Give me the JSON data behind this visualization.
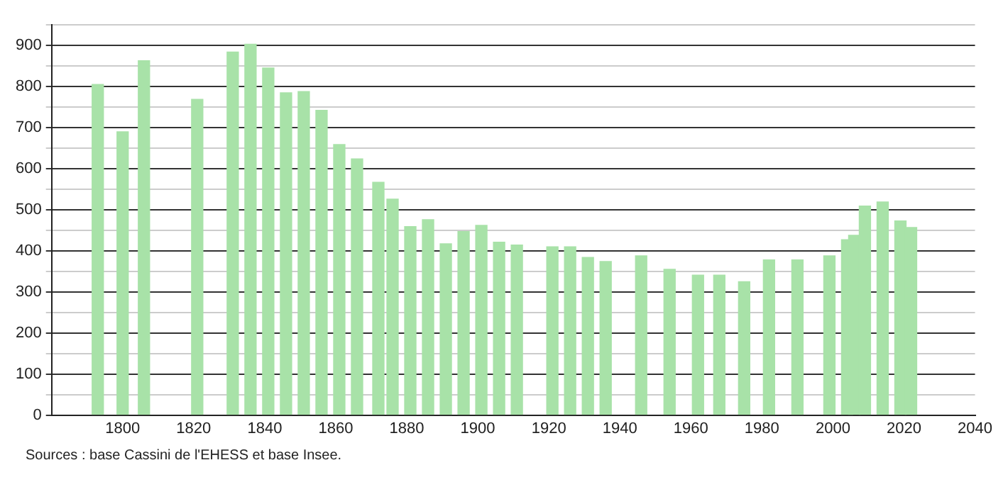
{
  "chart_data": {
    "type": "bar",
    "x": [
      1793,
      1800,
      1806,
      1821,
      1831,
      1836,
      1841,
      1846,
      1851,
      1856,
      1861,
      1866,
      1872,
      1876,
      1881,
      1886,
      1891,
      1896,
      1901,
      1906,
      1911,
      1921,
      1926,
      1931,
      1936,
      1946,
      1954,
      1962,
      1968,
      1975,
      1982,
      1990,
      1999,
      2004,
      2006,
      2009,
      2014,
      2019,
      2022
    ],
    "values": [
      805,
      690,
      863,
      769,
      884,
      903,
      845,
      785,
      788,
      742,
      659,
      624,
      567,
      526,
      459,
      476,
      417,
      447,
      462,
      421,
      414,
      410,
      410,
      384,
      374,
      388,
      355,
      341,
      341,
      325,
      378,
      378,
      388,
      427,
      438,
      509,
      519,
      473,
      457
    ],
    "color": "#a8e2a8",
    "xlim": [
      1780,
      2040
    ],
    "xticks": [
      1800,
      1820,
      1840,
      1860,
      1880,
      1900,
      1920,
      1940,
      1960,
      1980,
      2000,
      2020,
      2040
    ],
    "ylim": [
      0,
      950
    ],
    "yticks": [
      0,
      {
        "value": 50,
        "label": null
      },
      100,
      {
        "value": 150,
        "label": null
      },
      200,
      {
        "value": 250,
        "label": null
      },
      300,
      {
        "value": 350,
        "label": null
      },
      400,
      {
        "value": 450,
        "label": null
      },
      500,
      {
        "value": 550,
        "label": null
      },
      600,
      {
        "value": 650,
        "label": null
      },
      700,
      {
        "value": 750,
        "label": null
      },
      800,
      {
        "value": 850,
        "label": null
      },
      900,
      {
        "value": 950,
        "label": null
      }
    ],
    "grid": "y",
    "legend": false,
    "annotations": [
      "Sources : base Cassini de l'EHESS et base Insee."
    ]
  }
}
